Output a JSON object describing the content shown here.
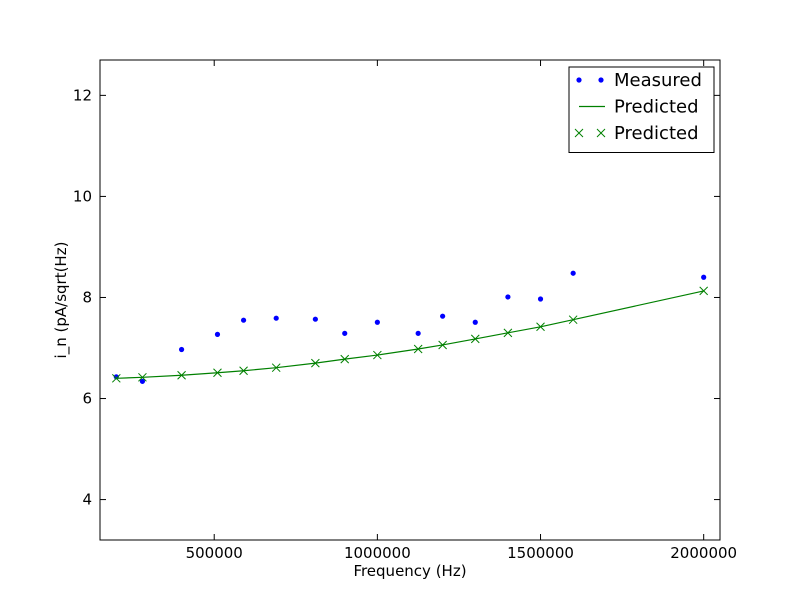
{
  "chart_data": {
    "type": "scatter",
    "title": "",
    "xlabel": "Frequency (Hz)",
    "ylabel": "i_n (pA/sqrt(Hz)",
    "xlim": [
      150000,
      2050000
    ],
    "ylim": [
      3.2,
      12.7
    ],
    "x_ticks": [
      500000,
      1000000,
      1500000,
      2000000
    ],
    "x_tick_labels": [
      "500000",
      "1000000",
      "1500000",
      "2000000"
    ],
    "y_ticks": [
      4,
      6,
      8,
      10,
      12
    ],
    "y_tick_labels": [
      "4",
      "6",
      "8",
      "10",
      "12"
    ],
    "grid": false,
    "legend_position": "top-right",
    "series": [
      {
        "name": "Measured",
        "kind": "points",
        "marker": "dot",
        "color": "#0000ff",
        "x": [
          200000,
          280000,
          400000,
          510000,
          590000,
          690000,
          810000,
          900000,
          1000000,
          1125000,
          1200000,
          1300000,
          1400000,
          1500000,
          1600000,
          2000000
        ],
        "y": [
          6.43,
          6.34,
          6.97,
          7.27,
          7.55,
          7.59,
          7.57,
          7.29,
          7.51,
          7.29,
          7.63,
          7.51,
          8.01,
          7.97,
          8.48,
          8.4
        ]
      },
      {
        "name": "Predicted",
        "kind": "line",
        "color": "#008000",
        "x": [
          200000,
          280000,
          400000,
          510000,
          590000,
          690000,
          810000,
          900000,
          1000000,
          1125000,
          1200000,
          1300000,
          1400000,
          1500000,
          1600000,
          2000000
        ],
        "y": [
          6.4,
          6.42,
          6.46,
          6.51,
          6.55,
          6.61,
          6.7,
          6.78,
          6.86,
          6.98,
          7.06,
          7.18,
          7.3,
          7.42,
          7.56,
          8.13
        ]
      },
      {
        "name": "Predicted",
        "kind": "points",
        "marker": "x",
        "color": "#008000",
        "x": [
          200000,
          280000,
          400000,
          510000,
          590000,
          690000,
          810000,
          900000,
          1000000,
          1125000,
          1200000,
          1300000,
          1400000,
          1500000,
          1600000,
          2000000
        ],
        "y": [
          6.4,
          6.42,
          6.46,
          6.51,
          6.55,
          6.61,
          6.7,
          6.78,
          6.86,
          6.98,
          7.06,
          7.18,
          7.3,
          7.42,
          7.56,
          8.13
        ]
      }
    ]
  }
}
